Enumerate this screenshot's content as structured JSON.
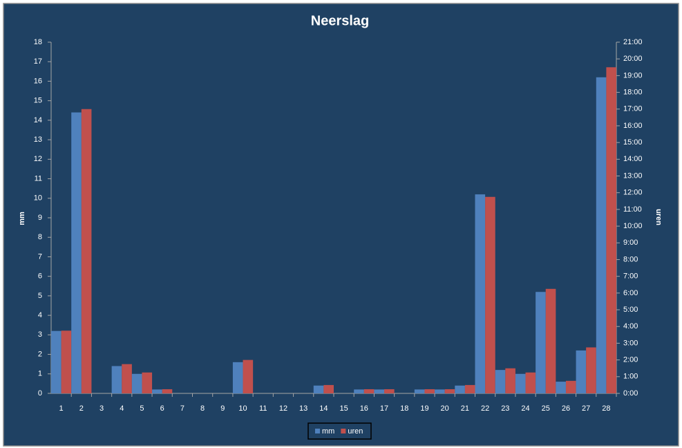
{
  "chart_data": {
    "type": "bar",
    "title": "Neerslag",
    "y_label": "mm",
    "y2_label": "uren",
    "categories": [
      "1",
      "2",
      "3",
      "4",
      "5",
      "6",
      "7",
      "8",
      "9",
      "10",
      "11",
      "12",
      "13",
      "14",
      "15",
      "16",
      "17",
      "18",
      "19",
      "20",
      "21",
      "22",
      "23",
      "24",
      "25",
      "26",
      "27",
      "28"
    ],
    "series": [
      {
        "name": "mm",
        "color": "#4f81bd",
        "values": [
          3.2,
          14.4,
          0,
          1.4,
          1.0,
          0.2,
          0,
          0,
          0,
          1.6,
          0,
          0,
          0,
          0.4,
          0,
          0.2,
          0.2,
          0,
          0.2,
          0.2,
          0.4,
          10.2,
          1.2,
          1.0,
          5.2,
          0.6,
          2.2,
          16.2
        ]
      },
      {
        "name": "uren",
        "color": "#c0504d",
        "axis": "y2",
        "values": [
          3.75,
          17,
          0,
          1.75,
          1.25,
          0.25,
          0,
          0,
          0,
          2,
          0,
          0,
          0,
          0.5,
          0,
          0.25,
          0.25,
          0,
          0.25,
          0.25,
          0.5,
          11.75,
          1.5,
          1.25,
          6.25,
          0.75,
          2.75,
          19.5
        ]
      }
    ],
    "ylim": [
      0,
      18
    ],
    "yticks": [
      0,
      1,
      2,
      3,
      4,
      5,
      6,
      7,
      8,
      9,
      10,
      11,
      12,
      13,
      14,
      15,
      16,
      17,
      18
    ],
    "y2lim": [
      0,
      21
    ],
    "y2ticks": [
      {
        "value": 0,
        "label": "0:00"
      },
      {
        "value": 1,
        "label": "1:00"
      },
      {
        "value": 2,
        "label": "2:00"
      },
      {
        "value": 3,
        "label": "3:00"
      },
      {
        "value": 4,
        "label": "4:00"
      },
      {
        "value": 5,
        "label": "5:00"
      },
      {
        "value": 6,
        "label": "6:00"
      },
      {
        "value": 7,
        "label": "7:00"
      },
      {
        "value": 8,
        "label": "8:00"
      },
      {
        "value": 9,
        "label": "9:00"
      },
      {
        "value": 10,
        "label": "10:00"
      },
      {
        "value": 11,
        "label": "11:00"
      },
      {
        "value": 12,
        "label": "12:00"
      },
      {
        "value": 13,
        "label": "13:00"
      },
      {
        "value": 14,
        "label": "14:00"
      },
      {
        "value": 15,
        "label": "15:00"
      },
      {
        "value": 16,
        "label": "16:00"
      },
      {
        "value": 17,
        "label": "17:00"
      },
      {
        "value": 18,
        "label": "18:00"
      },
      {
        "value": 19,
        "label": "19:00"
      },
      {
        "value": 20,
        "label": "20:00"
      },
      {
        "value": 21,
        "label": "21:00"
      }
    ],
    "grid": false,
    "legend": "bottom"
  }
}
